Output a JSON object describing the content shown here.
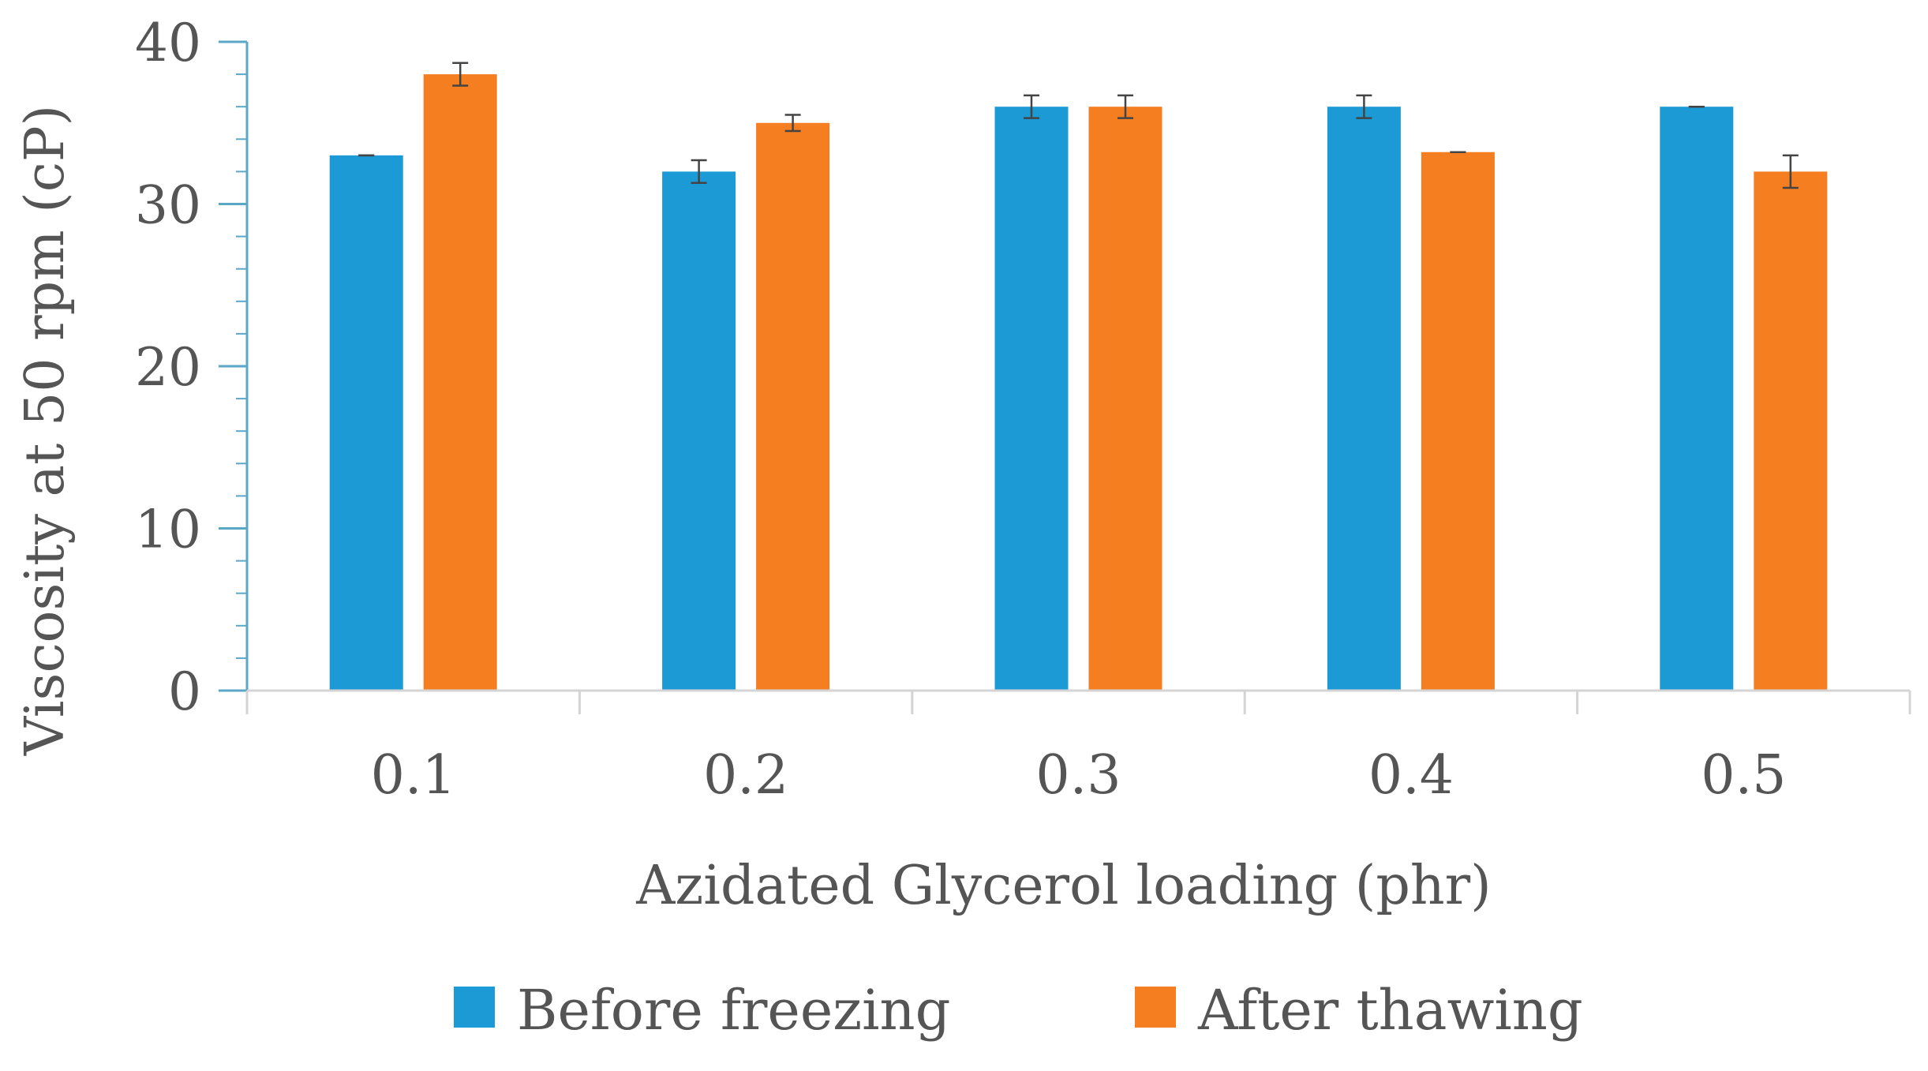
{
  "chart_data": {
    "type": "bar",
    "xlabel": "Azidated Glycerol loading (phr)",
    "ylabel": "Viscosity at 50 rpm (cP)",
    "ylim": [
      0,
      40
    ],
    "yticks": [
      0,
      10,
      20,
      30,
      40
    ],
    "categories": [
      "0.1",
      "0.2",
      "0.3",
      "0.4",
      "0.5"
    ],
    "series": [
      {
        "name": "Before freezing",
        "color": "#1b9ad6",
        "values": [
          33,
          32,
          36,
          36,
          36
        ],
        "errors": [
          0,
          0.7,
          0.7,
          0.7,
          0
        ]
      },
      {
        "name": "After thawing",
        "color": "#f47e20",
        "values": [
          38,
          35,
          36,
          33.2,
          32
        ],
        "errors": [
          0.7,
          0.5,
          0.7,
          0,
          1
        ]
      }
    ],
    "legend_position": "bottom",
    "grid": false,
    "axis_color": "#5ba7c7"
  }
}
